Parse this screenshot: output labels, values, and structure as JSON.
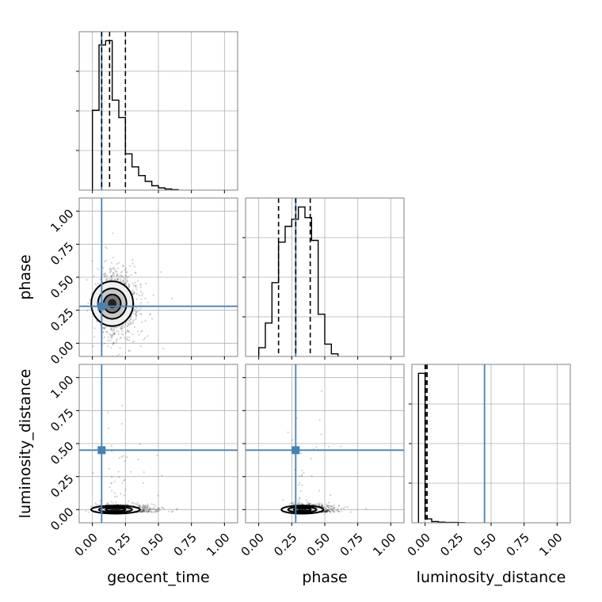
{
  "chart_data": {
    "type": "corner",
    "parameters": [
      "geocent_time",
      "phase",
      "luminosity_distance"
    ],
    "axis_labels": {
      "x": [
        "geocent_time",
        "phase",
        "luminosity_distance"
      ],
      "y": [
        "",
        "phase",
        "luminosity_distance"
      ]
    },
    "axis_range": [
      -0.1,
      1.1
    ],
    "ticks": [
      0.0,
      0.25,
      0.5,
      0.75,
      1.0
    ],
    "tick_labels": [
      "0.00",
      "0.25",
      "0.50",
      "0.75",
      "1.00"
    ],
    "grid": true,
    "truths": {
      "geocent_time": 0.07,
      "phase": 0.28,
      "luminosity_distance": 0.45
    },
    "truth_color": "#4682b4",
    "quantiles": {
      "geocent_time": [
        0.07,
        0.13,
        0.25
      ],
      "phase": [
        0.15,
        0.28,
        0.39
      ],
      "luminosity_distance": [
        0.0,
        0.005,
        0.015
      ]
    },
    "histograms": {
      "geocent_time": {
        "edges": [
          0.0,
          0.05,
          0.1,
          0.15,
          0.2,
          0.25,
          0.3,
          0.35,
          0.4,
          0.45,
          0.5,
          0.55,
          0.6,
          0.65
        ],
        "counts": [
          0.55,
          1.0,
          1.03,
          0.62,
          0.5,
          0.25,
          0.16,
          0.1,
          0.06,
          0.03,
          0.015,
          0.008,
          0.003
        ]
      },
      "phase": {
        "edges": [
          0.0,
          0.05,
          0.1,
          0.15,
          0.2,
          0.25,
          0.3,
          0.35,
          0.4,
          0.45,
          0.5,
          0.55,
          0.6
        ],
        "counts": [
          0.05,
          0.19,
          0.42,
          0.65,
          0.74,
          0.78,
          0.85,
          0.79,
          0.66,
          0.24,
          0.07,
          0.015
        ]
      },
      "luminosity_distance": {
        "edges": [
          -0.05,
          0.0,
          0.05,
          0.1,
          0.15,
          0.2,
          0.25,
          0.3
        ],
        "counts": [
          0.955,
          0.025,
          0.008,
          0.004,
          0.002,
          0.002,
          0.001
        ]
      }
    },
    "density_2d": {
      "phase_vs_geocent_time": {
        "center": [
          0.12,
          0.3
        ],
        "spread": [
          0.12,
          0.14
        ]
      },
      "luminosity_distance_vs_geocent_time": {
        "center": [
          0.14,
          0.0
        ],
        "spread": [
          0.14,
          0.02
        ]
      },
      "luminosity_distance_vs_phase": {
        "center": [
          0.3,
          0.0
        ],
        "spread": [
          0.12,
          0.02
        ]
      }
    }
  }
}
